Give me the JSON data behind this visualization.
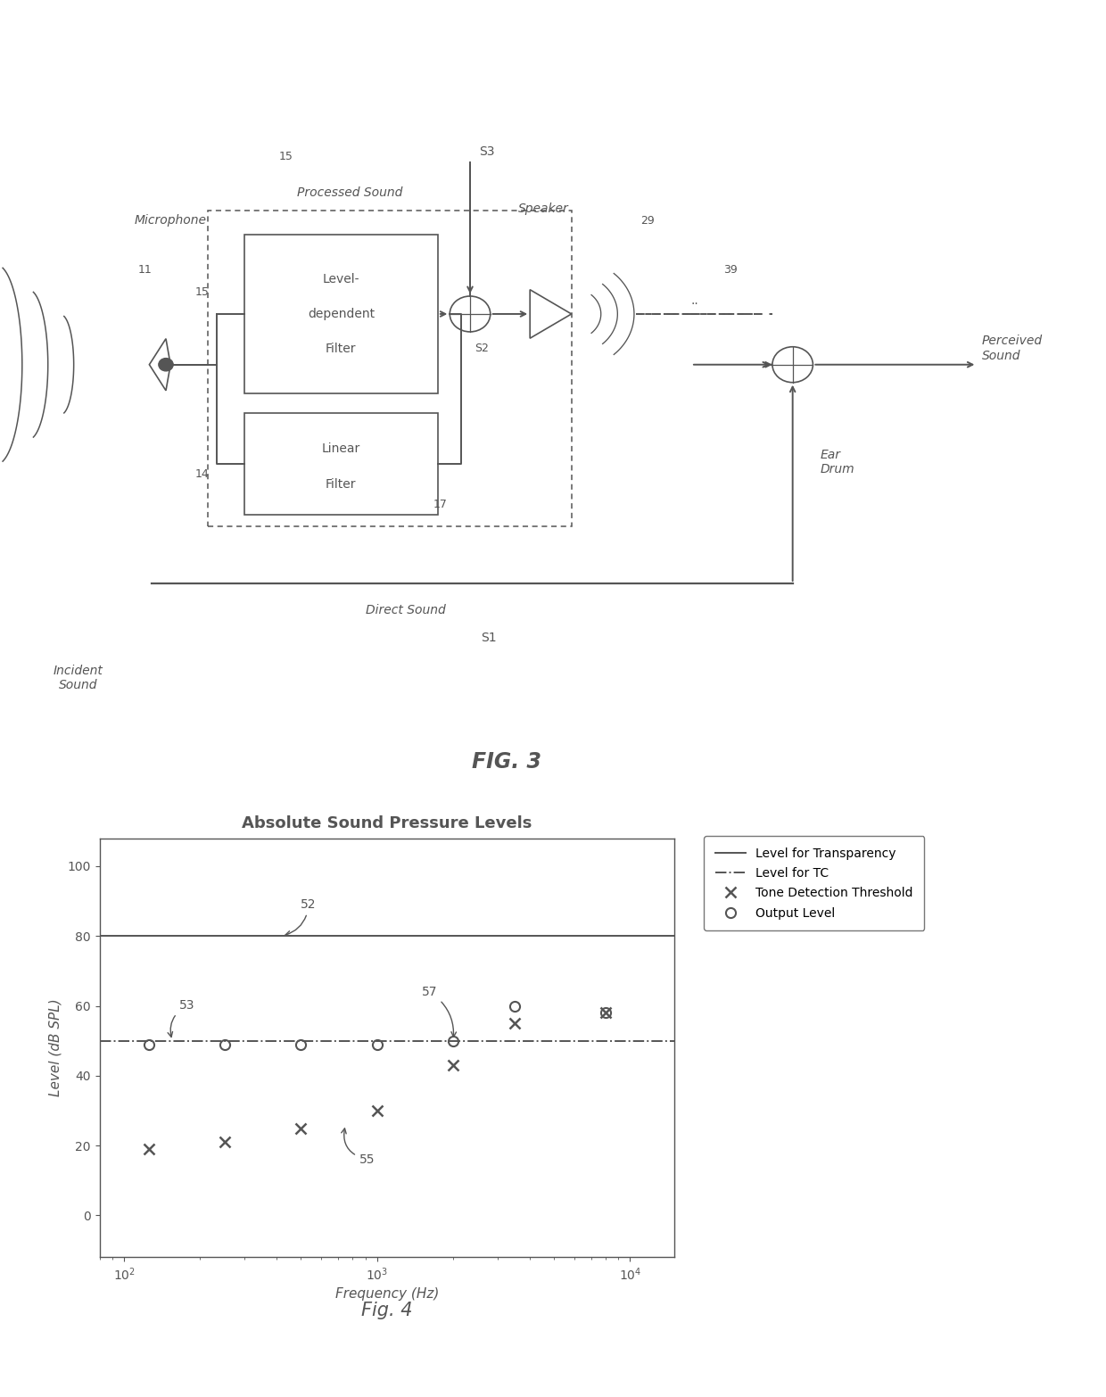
{
  "bg_color": "#ffffff",
  "line_color": "#555555",
  "fig3_label": "FIG. 3",
  "fig4": {
    "title": "Absolute Sound Pressure Levels",
    "xlabel": "Frequency (Hz)",
    "ylabel": "Level (dB SPL)",
    "ylim": [
      -12,
      108
    ],
    "transparency_level": 80,
    "tc_level": 50,
    "tone_detection_x": [
      125,
      250,
      500,
      1000,
      2000,
      3500,
      8000
    ],
    "tone_detection_y": [
      19,
      21,
      25,
      30,
      43,
      55,
      58
    ],
    "output_level_x": [
      125,
      250,
      500,
      1000,
      2000,
      3500,
      8000
    ],
    "output_level_y": [
      49,
      49,
      49,
      49,
      50,
      60,
      58
    ],
    "fig_label": "Fig. 4",
    "legend_entries": [
      "Level for Transparency",
      "Level for TC",
      "Tone Detection Threshold",
      "Output Level"
    ]
  }
}
